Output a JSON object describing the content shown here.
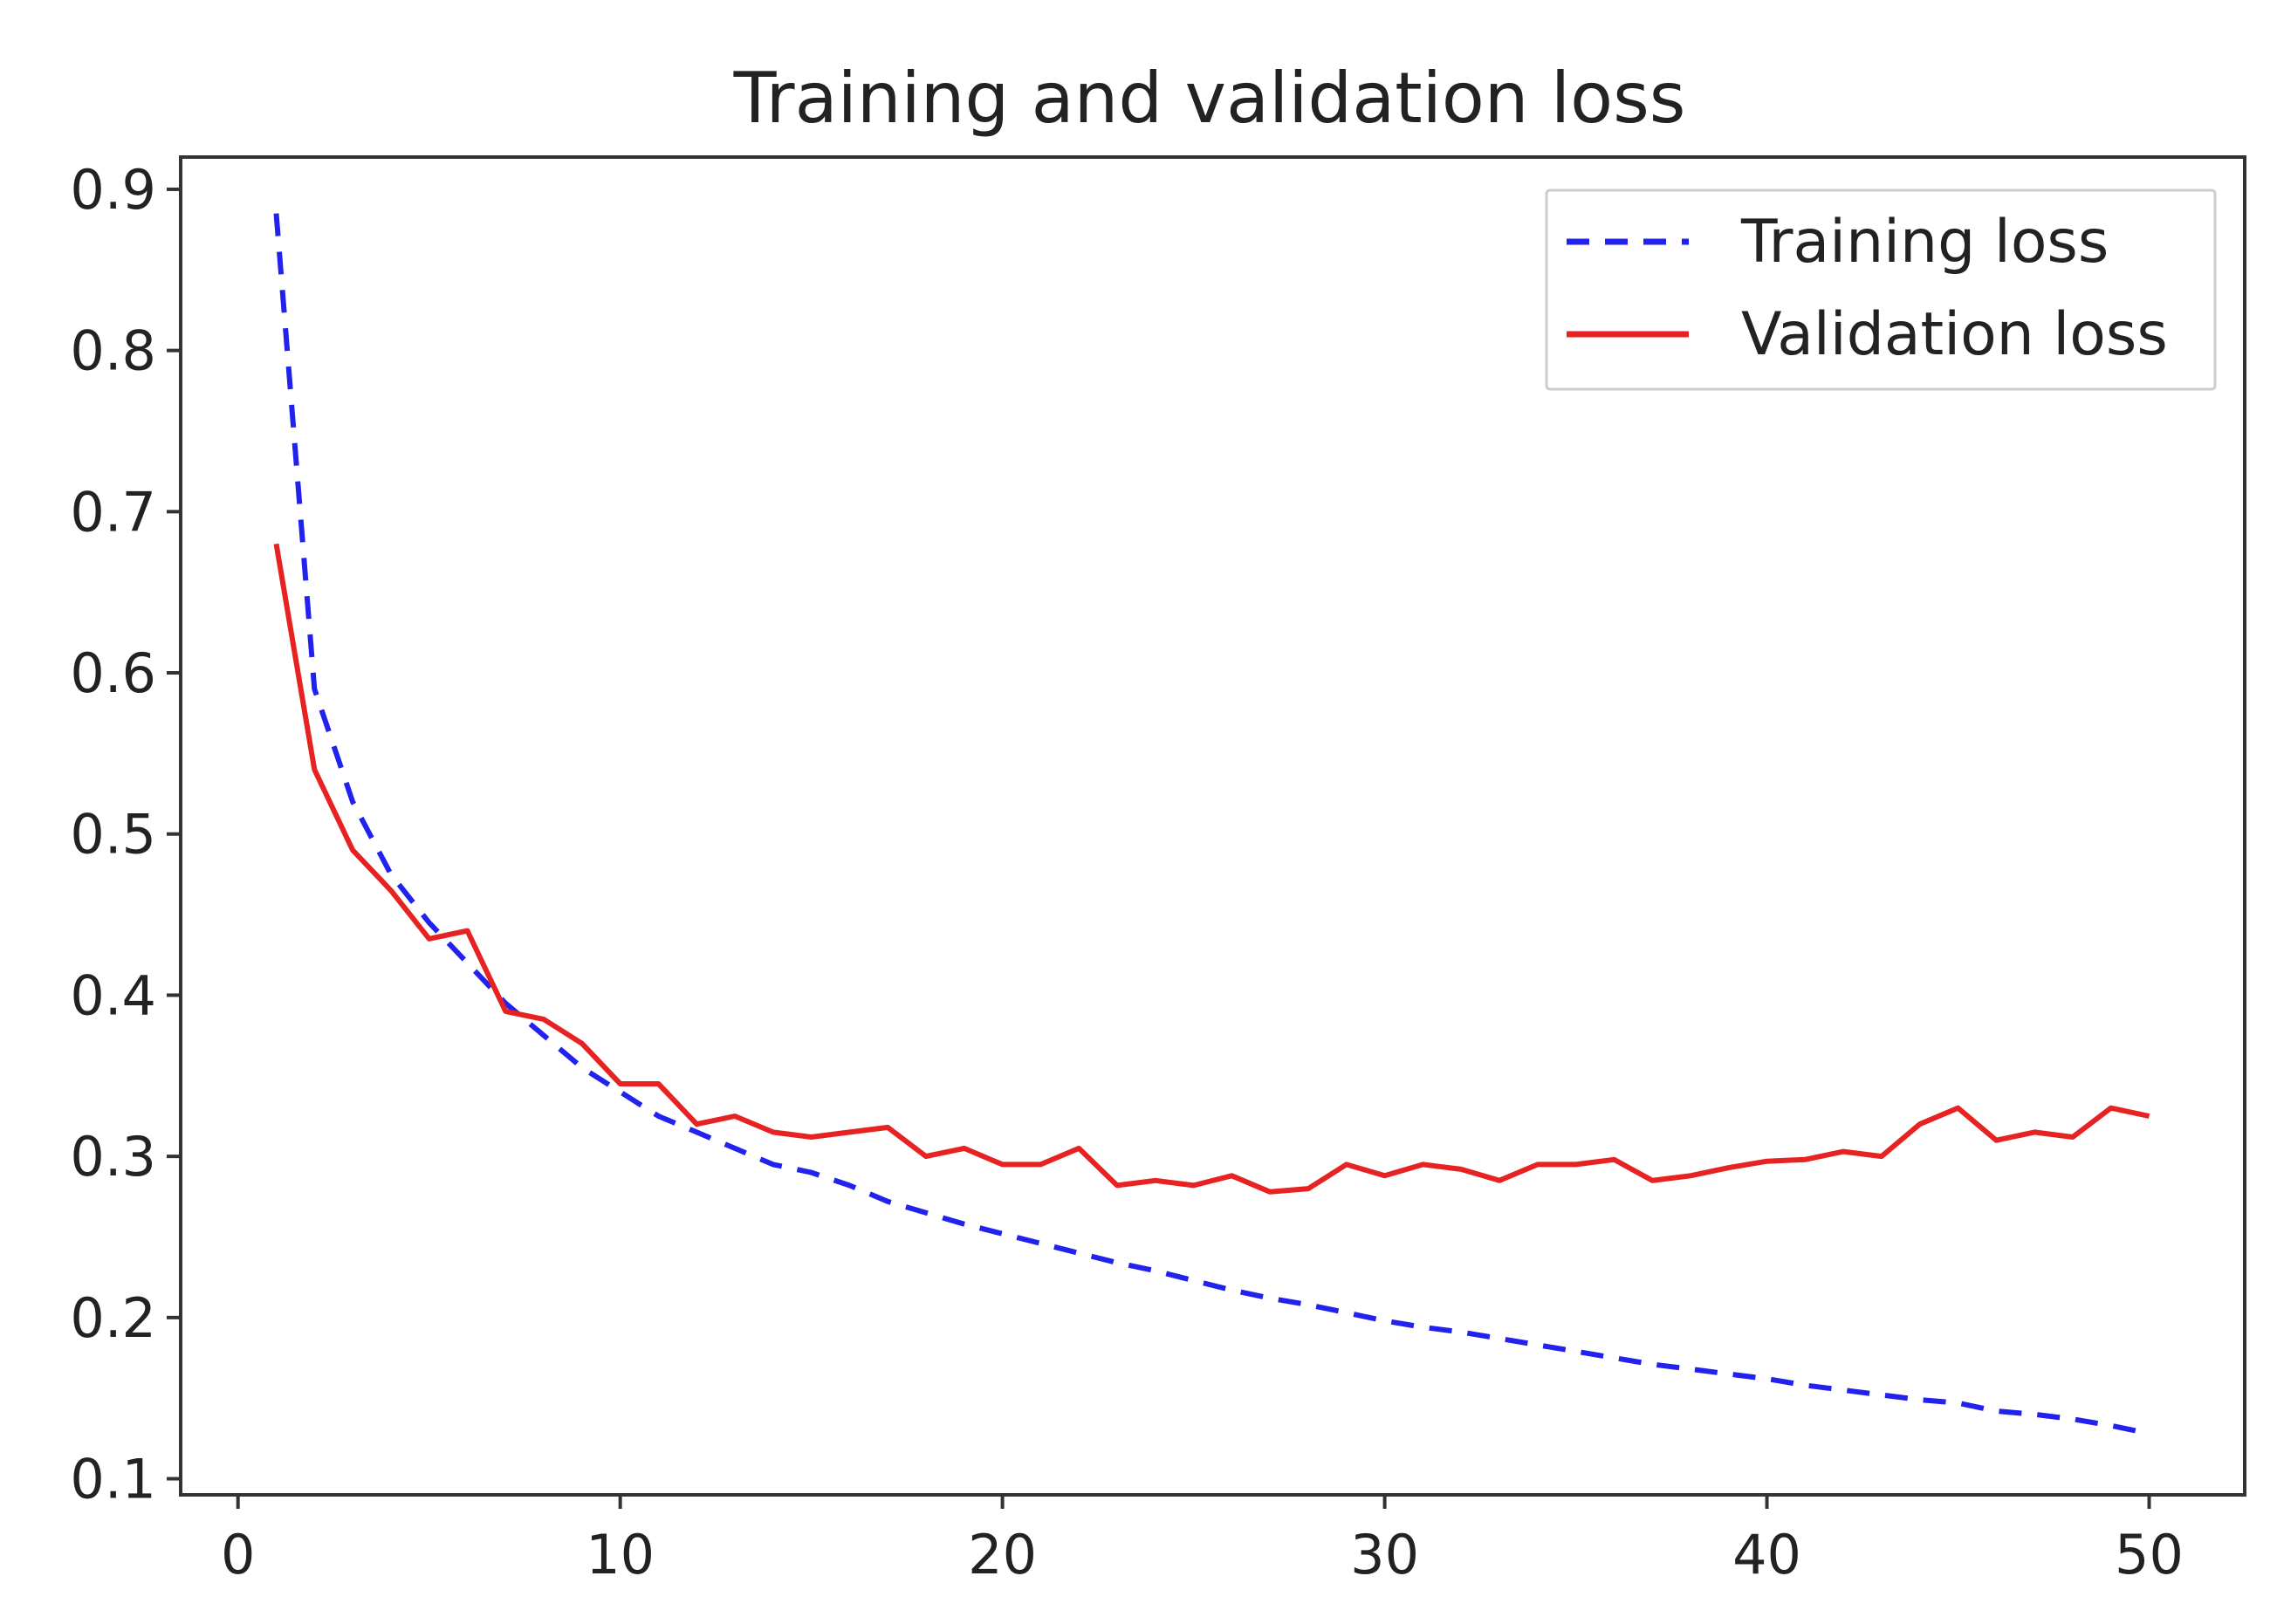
{
  "chart_data": {
    "type": "line",
    "title": "Training and validation loss",
    "xlabel": "",
    "ylabel": "",
    "xlim": [
      -1.5,
      52.5
    ],
    "ylim": [
      0.09,
      0.92
    ],
    "xticks": [
      0,
      10,
      20,
      30,
      40,
      50
    ],
    "yticks": [
      0.1,
      0.2,
      0.3,
      0.4,
      0.5,
      0.6,
      0.7,
      0.8,
      0.9
    ],
    "grid": false,
    "legend_position": "top-right",
    "x": [
      1,
      2,
      3,
      4,
      5,
      6,
      7,
      8,
      9,
      10,
      11,
      12,
      13,
      14,
      15,
      16,
      17,
      18,
      19,
      20,
      21,
      22,
      23,
      24,
      25,
      26,
      27,
      28,
      29,
      30,
      31,
      32,
      33,
      34,
      35,
      36,
      37,
      38,
      39,
      40,
      41,
      42,
      43,
      44,
      45,
      46,
      47,
      48,
      49,
      50
    ],
    "series": [
      {
        "name": "Training loss",
        "style": "dashed",
        "color": "#2222ee",
        "values": [
          0.885,
          0.59,
          0.52,
          0.475,
          0.445,
          0.42,
          0.395,
          0.375,
          0.355,
          0.34,
          0.325,
          0.315,
          0.305,
          0.295,
          0.29,
          0.282,
          0.272,
          0.265,
          0.258,
          0.252,
          0.246,
          0.24,
          0.234,
          0.229,
          0.223,
          0.217,
          0.212,
          0.208,
          0.203,
          0.198,
          0.194,
          0.191,
          0.187,
          0.183,
          0.179,
          0.175,
          0.171,
          0.168,
          0.165,
          0.162,
          0.158,
          0.155,
          0.152,
          0.149,
          0.147,
          0.142,
          0.14,
          0.137,
          0.133,
          0.128
        ]
      },
      {
        "name": "Validation loss",
        "style": "solid",
        "color": "#e62222",
        "values": [
          0.68,
          0.54,
          0.49,
          0.465,
          0.435,
          0.44,
          0.39,
          0.385,
          0.37,
          0.345,
          0.345,
          0.32,
          0.325,
          0.315,
          0.312,
          0.315,
          0.318,
          0.3,
          0.305,
          0.295,
          0.295,
          0.305,
          0.282,
          0.285,
          0.282,
          0.288,
          0.278,
          0.28,
          0.295,
          0.288,
          0.295,
          0.292,
          0.285,
          0.295,
          0.295,
          0.298,
          0.285,
          0.288,
          0.293,
          0.297,
          0.298,
          0.303,
          0.3,
          0.32,
          0.33,
          0.31,
          0.315,
          0.312,
          0.33,
          0.325
        ]
      }
    ]
  }
}
